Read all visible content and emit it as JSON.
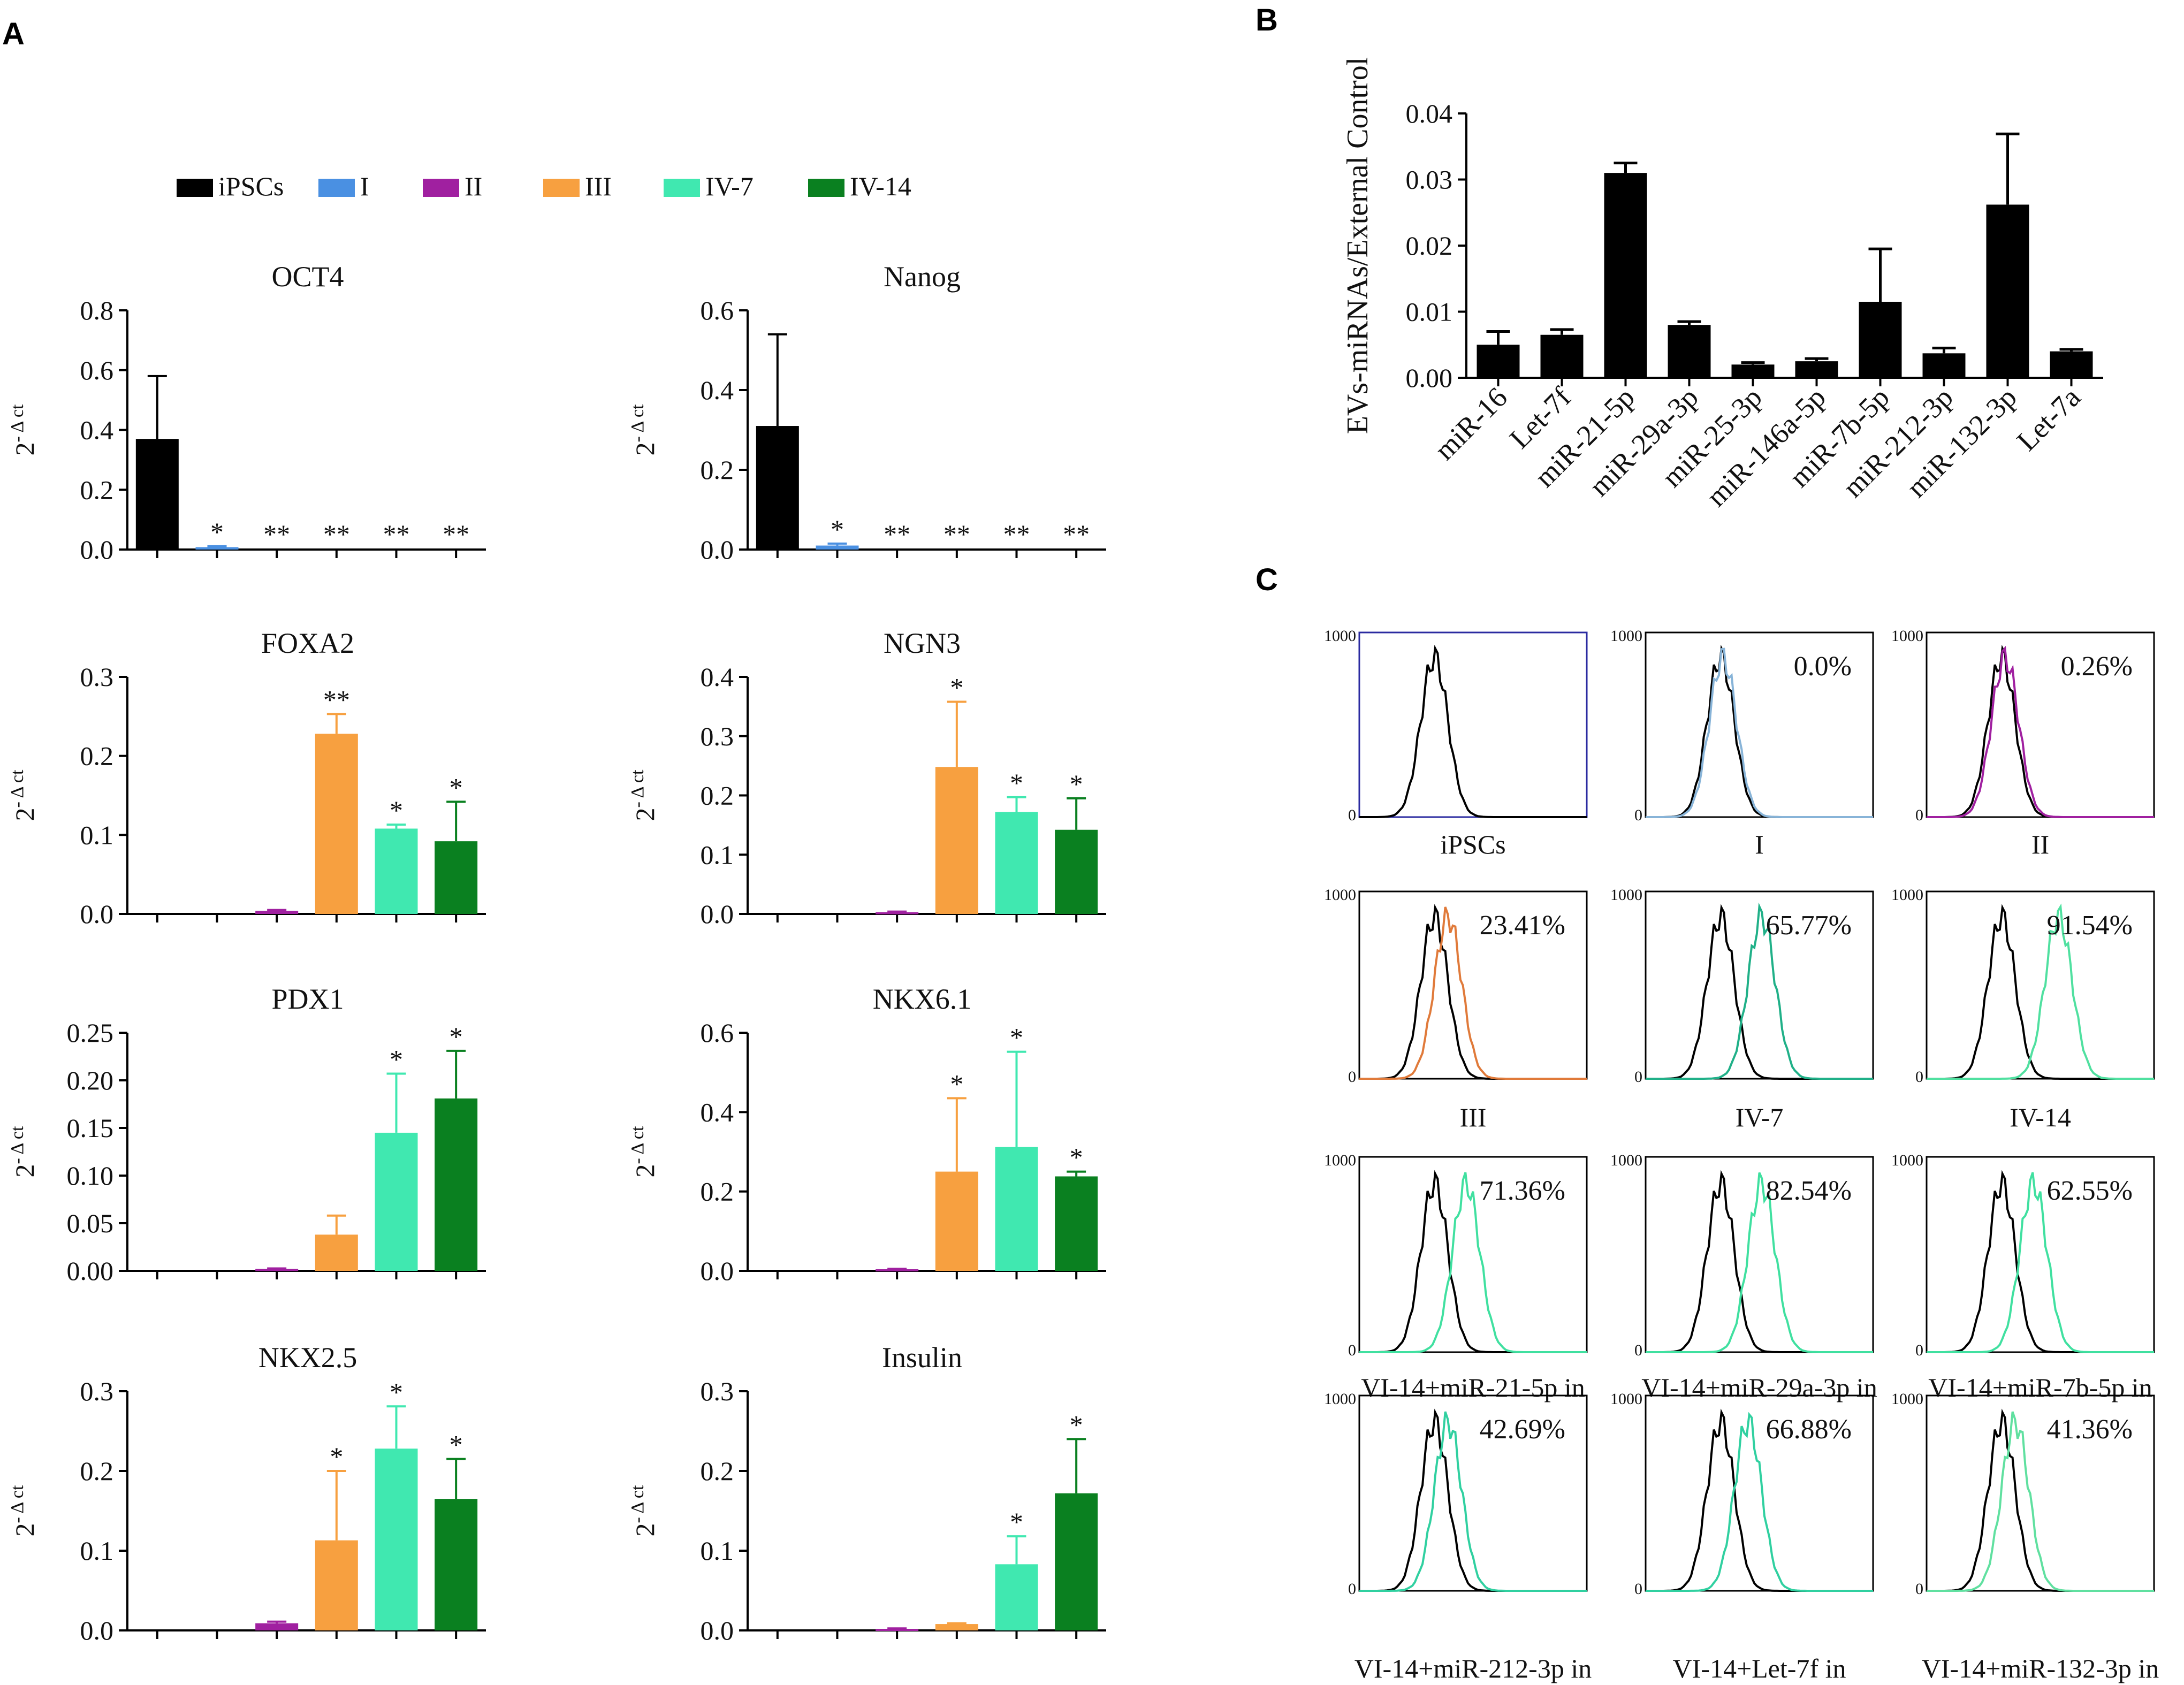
{
  "panels": {
    "a": "A",
    "b": "B",
    "c": "C"
  },
  "legend": {
    "items": [
      {
        "label": "iPSCs",
        "color": "#000000"
      },
      {
        "label": "I",
        "color": "#4a90e2"
      },
      {
        "label": "II",
        "color": "#a020a0"
      },
      {
        "label": "III",
        "color": "#f7a040"
      },
      {
        "label": "IV-7",
        "color": "#40e8b0"
      },
      {
        "label": "IV-14",
        "color": "#0a8020"
      }
    ]
  },
  "y_label": {
    "base": "2",
    "sup": "- Δ ct"
  },
  "chart_data": [
    {
      "type": "bar",
      "title": "OCT4",
      "categories": [
        "iPSCs",
        "I",
        "II",
        "III",
        "IV-7",
        "IV-14"
      ],
      "values": [
        0.37,
        0.008,
        0,
        0,
        0,
        0
      ],
      "errors": [
        0.21,
        0.003,
        0,
        0,
        0,
        0
      ],
      "significance": [
        "",
        "*",
        "**",
        "**",
        "**",
        "**"
      ],
      "ylim": [
        0,
        0.8
      ],
      "yticks": [
        "0.0",
        "0.2",
        "0.4",
        "0.6",
        "0.8"
      ],
      "yticks_v": [
        0,
        0.2,
        0.4,
        0.6,
        0.8
      ]
    },
    {
      "type": "bar",
      "title": "Nanog",
      "categories": [
        "iPSCs",
        "I",
        "II",
        "III",
        "IV-7",
        "IV-14"
      ],
      "values": [
        0.31,
        0.01,
        0,
        0,
        0,
        0
      ],
      "errors": [
        0.23,
        0.005,
        0,
        0,
        0,
        0
      ],
      "significance": [
        "",
        "*",
        "**",
        "**",
        "**",
        "**"
      ],
      "ylim": [
        0,
        0.6
      ],
      "yticks": [
        "0.0",
        "0.2",
        "0.4",
        "0.6"
      ],
      "yticks_v": [
        0,
        0.2,
        0.4,
        0.6
      ]
    },
    {
      "type": "bar",
      "title": "FOXA2",
      "categories": [
        "iPSCs",
        "I",
        "II",
        "III",
        "IV-7",
        "IV-14"
      ],
      "values": [
        0,
        0,
        0.004,
        0.228,
        0.108,
        0.092
      ],
      "errors": [
        0,
        0,
        0.001,
        0.025,
        0.005,
        0.05
      ],
      "significance": [
        "",
        "",
        "",
        "**",
        "*",
        "*"
      ],
      "ylim": [
        0,
        0.3
      ],
      "yticks": [
        "0.0",
        "0.1",
        "0.2",
        "0.3"
      ],
      "yticks_v": [
        0,
        0.1,
        0.2,
        0.3
      ]
    },
    {
      "type": "bar",
      "title": "NGN3",
      "categories": [
        "iPSCs",
        "I",
        "II",
        "III",
        "IV-7",
        "IV-14"
      ],
      "values": [
        0,
        0,
        0.003,
        0.248,
        0.172,
        0.142
      ],
      "errors": [
        0,
        0,
        0.001,
        0.11,
        0.025,
        0.053
      ],
      "significance": [
        "",
        "",
        "",
        "*",
        "*",
        "*"
      ],
      "ylim": [
        0,
        0.4
      ],
      "yticks": [
        "0.0",
        "0.1",
        "0.2",
        "0.3",
        "0.4"
      ],
      "yticks_v": [
        0,
        0.1,
        0.2,
        0.3,
        0.4
      ]
    },
    {
      "type": "bar",
      "title": "PDX1",
      "categories": [
        "iPSCs",
        "I",
        "II",
        "III",
        "IV-7",
        "IV-14"
      ],
      "values": [
        0,
        0,
        0.002,
        0.038,
        0.145,
        0.181
      ],
      "errors": [
        0,
        0,
        0.0005,
        0.02,
        0.062,
        0.05
      ],
      "significance": [
        "",
        "",
        "",
        "",
        "*",
        "*"
      ],
      "ylim": [
        0,
        0.25
      ],
      "yticks": [
        "0.00",
        "0.05",
        "0.10",
        "0.15",
        "0.20",
        "0.25"
      ],
      "yticks_v": [
        0,
        0.05,
        0.1,
        0.15,
        0.2,
        0.25
      ]
    },
    {
      "type": "bar",
      "title": "NKX6.1",
      "categories": [
        "iPSCs",
        "I",
        "II",
        "III",
        "IV-7",
        "IV-14"
      ],
      "values": [
        0,
        0,
        0.004,
        0.25,
        0.312,
        0.238
      ],
      "errors": [
        0,
        0,
        0.001,
        0.185,
        0.24,
        0.012
      ],
      "significance": [
        "",
        "",
        "",
        "*",
        "*",
        "*"
      ],
      "ylim": [
        0,
        0.6
      ],
      "yticks": [
        "0.0",
        "0.2",
        "0.4",
        "0.6"
      ],
      "yticks_v": [
        0,
        0.2,
        0.4,
        0.6
      ]
    },
    {
      "type": "bar",
      "title": "NKX2.5",
      "categories": [
        "iPSCs",
        "I",
        "II",
        "III",
        "IV-7",
        "IV-14"
      ],
      "values": [
        0,
        0,
        0.009,
        0.113,
        0.228,
        0.165
      ],
      "errors": [
        0,
        0,
        0.002,
        0.087,
        0.053,
        0.05
      ],
      "significance": [
        "",
        "",
        "",
        "*",
        "*",
        "*"
      ],
      "ylim": [
        0,
        0.3
      ],
      "yticks": [
        "0.0",
        "0.1",
        "0.2",
        "0.3"
      ],
      "yticks_v": [
        0,
        0.1,
        0.2,
        0.3
      ]
    },
    {
      "type": "bar",
      "title": "Insulin",
      "categories": [
        "iPSCs",
        "I",
        "II",
        "III",
        "IV-7",
        "IV-14"
      ],
      "values": [
        0,
        0,
        0.002,
        0.008,
        0.083,
        0.172
      ],
      "errors": [
        0,
        0,
        0.0005,
        0.001,
        0.035,
        0.068
      ],
      "significance": [
        "",
        "",
        "",
        "",
        "*",
        "*"
      ],
      "ylim": [
        0,
        0.3
      ],
      "yticks": [
        "0.0",
        "0.1",
        "0.2",
        "0.3"
      ],
      "yticks_v": [
        0,
        0.1,
        0.2,
        0.3
      ]
    },
    {
      "type": "bar",
      "title": "",
      "ylabel": "EVs-miRNAs/External Control",
      "categories": [
        "miR-16",
        "Let-7f",
        "miR-21-5p",
        "miR-29a-3p",
        "miR-25-3p",
        "miR-146a-5p",
        "miR-7b-5p",
        "miR-212-3p",
        "miR-132-3p",
        "Let-7a"
      ],
      "values": [
        0.005,
        0.0065,
        0.031,
        0.008,
        0.002,
        0.0025,
        0.0115,
        0.0037,
        0.0262,
        0.004
      ],
      "errors": [
        0.002,
        0.0008,
        0.0015,
        0.0005,
        0.0003,
        0.0004,
        0.008,
        0.0008,
        0.0107,
        0.0003
      ],
      "ylim": [
        0,
        0.04
      ],
      "yticks": [
        "0.00",
        "0.01",
        "0.02",
        "0.03",
        "0.04"
      ],
      "yticks_v": [
        0,
        0.01,
        0.02,
        0.03,
        0.04
      ]
    }
  ],
  "flow": {
    "axis_max": "1000",
    "axis_zero": "0",
    "panels": [
      {
        "caption": "iPSCs",
        "percent": "",
        "color": "#000000",
        "shift": 0
      },
      {
        "caption": "I",
        "percent": "0.0%",
        "color": "#88b4d8",
        "shift": 0.01
      },
      {
        "caption": "II",
        "percent": "0.26%",
        "color": "#a020a0",
        "shift": 0.015
      },
      {
        "caption": "III",
        "percent": "23.41%",
        "color": "#e07a3a",
        "shift": 0.06
      },
      {
        "caption": "IV-7",
        "percent": "65.77%",
        "color": "#20b088",
        "shift": 0.18
      },
      {
        "caption": "IV-14",
        "percent": "91.54%",
        "color": "#50e0a0",
        "shift": 0.25
      },
      {
        "caption": "VI-14+miR-21-5p in",
        "percent": "71.36%",
        "color": "#40e0a0",
        "shift": 0.14
      },
      {
        "caption": "VI-14+miR-29a-3p in",
        "percent": "82.54%",
        "color": "#40e0a0",
        "shift": 0.18
      },
      {
        "caption": "VI-14+miR-7b-5p in",
        "percent": "62.55%",
        "color": "#40e0a0",
        "shift": 0.14
      },
      {
        "caption": "VI-14+miR-212-3p in",
        "percent": "42.69%",
        "color": "#30d0a0",
        "shift": 0.06
      },
      {
        "caption": "VI-14+Let-7f in",
        "percent": "66.88%",
        "color": "#30d0a0",
        "shift": 0.12
      },
      {
        "caption": "VI-14+miR-132-3p in",
        "percent": "41.36%",
        "color": "#60e0a0",
        "shift": 0.06
      }
    ]
  }
}
